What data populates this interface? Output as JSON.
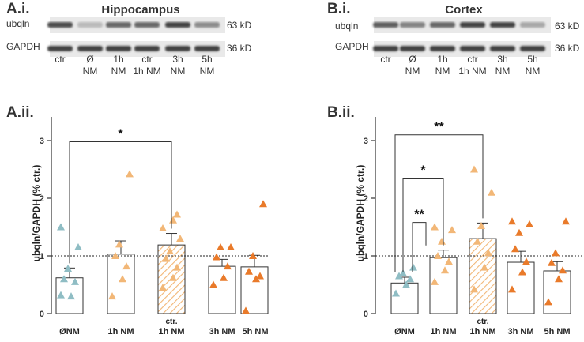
{
  "colors": {
    "teal": "#8fbdc4",
    "light_orange": "#f2b777",
    "orange": "#e97a2a",
    "hatch": "#f2b777",
    "band_bg": "#e9e9e9",
    "band_dark": "#303030"
  },
  "panels": [
    {
      "id": "A",
      "blot_label": "A.i.",
      "blot_title": "Hippocampus",
      "graph_label": "A.ii.",
      "blot": {
        "rows": [
          {
            "name": "ubqln",
            "kd": "63 kD",
            "intensity": [
              0.85,
              0.25,
              0.7,
              0.7,
              0.9,
              0.5
            ]
          },
          {
            "name": "GAPDH",
            "kd": "36 kD",
            "intensity": [
              0.9,
              0.9,
              0.9,
              0.9,
              0.9,
              0.9
            ]
          }
        ],
        "lanes": [
          [
            "ctr"
          ],
          [
            "Ø",
            "NM"
          ],
          [
            "1h",
            "NM"
          ],
          [
            "ctr",
            "1h NM"
          ],
          [
            "3h",
            "NM"
          ],
          [
            "5h",
            "NM"
          ]
        ]
      }
    },
    {
      "id": "B",
      "blot_label": "B.i.",
      "blot_title": "Cortex",
      "graph_label": "B.ii.",
      "blot": {
        "rows": [
          {
            "name": "ubqln",
            "kd": "63 kD",
            "intensity": [
              0.75,
              0.55,
              0.7,
              0.9,
              0.9,
              0.35
            ]
          },
          {
            "name": "GAPDH",
            "kd": "36 kD",
            "intensity": [
              0.9,
              0.9,
              0.9,
              0.9,
              0.9,
              0.9
            ]
          }
        ],
        "lanes": [
          [
            "ctr"
          ],
          [
            "Ø",
            "NM"
          ],
          [
            "1h",
            "NM"
          ],
          [
            "ctr",
            "1h NM"
          ],
          [
            "3h",
            "NM"
          ],
          [
            "5h",
            "NM"
          ]
        ]
      }
    }
  ],
  "chart_data": [
    {
      "type": "bar",
      "ylabel": "ubqln/GAPDH (% ctr.)",
      "ylim": [
        0,
        3
      ],
      "yticks": [
        "0",
        "1",
        "2",
        "3"
      ],
      "reference_line": 1,
      "categories": [
        [
          "ØNM"
        ],
        [
          "1h NM"
        ],
        [
          "ctr.",
          "1h NM"
        ],
        [
          "3h NM"
        ],
        [
          "5h NM"
        ]
      ],
      "values": [
        0.62,
        1.03,
        1.19,
        0.82,
        0.81
      ],
      "errors": [
        0.17,
        0.23,
        0.2,
        0.12,
        0.2
      ],
      "point_colors": [
        "teal",
        "light_orange",
        "light_orange",
        "orange",
        "orange"
      ],
      "hatched": [
        false,
        false,
        true,
        false,
        false
      ],
      "points": [
        [
          0.32,
          0.3,
          0.55,
          0.6,
          0.78,
          1.15,
          1.5
        ],
        [
          0.3,
          0.6,
          0.82,
          1.0,
          1.2,
          2.42
        ],
        [
          0.45,
          0.62,
          0.8,
          0.95,
          1.08,
          1.3,
          1.48,
          1.62,
          1.72
        ],
        [
          0.5,
          0.62,
          0.82,
          0.98,
          1.15,
          1.15
        ],
        [
          0.05,
          0.6,
          0.65,
          0.73,
          1.0,
          1.9
        ]
      ],
      "significance": [
        {
          "from": 0,
          "to": 2,
          "label": "*",
          "y": 2.98
        }
      ]
    },
    {
      "type": "bar",
      "ylabel": "ubqln/GAPDH (% ctr.)",
      "ylim": [
        0,
        3
      ],
      "yticks": [
        "0",
        "1",
        "2",
        "3"
      ],
      "reference_line": 1,
      "categories": [
        [
          "ØNM"
        ],
        [
          "1h NM"
        ],
        [
          "ctr.",
          "1h NM"
        ],
        [
          "3h NM"
        ],
        [
          "5h NM"
        ]
      ],
      "values": [
        0.53,
        0.97,
        1.3,
        0.89,
        0.74
      ],
      "errors": [
        0.1,
        0.13,
        0.27,
        0.19,
        0.16
      ],
      "point_colors": [
        "teal",
        "light_orange",
        "light_orange",
        "orange",
        "orange"
      ],
      "hatched": [
        false,
        false,
        true,
        false,
        false
      ],
      "points": [
        [
          0.35,
          0.5,
          0.6,
          0.65,
          0.7,
          0.8
        ],
        [
          0.55,
          0.75,
          0.9,
          1.0,
          1.25,
          1.45,
          1.5
        ],
        [
          0.42,
          0.8,
          1.05,
          1.25,
          1.52,
          2.1,
          2.5
        ],
        [
          0.42,
          0.72,
          0.9,
          1.12,
          1.4,
          1.55,
          1.6
        ],
        [
          0.2,
          0.6,
          0.75,
          0.88,
          1.05,
          1.6
        ]
      ],
      "significance": [
        {
          "from": 0,
          "to": 2,
          "label": "**",
          "y": 3.1
        },
        {
          "from": 0,
          "to": 1,
          "label": "*",
          "y": 2.35
        },
        {
          "from": 0,
          "to": 1,
          "label": "**",
          "y": 1.58
        }
      ]
    }
  ]
}
